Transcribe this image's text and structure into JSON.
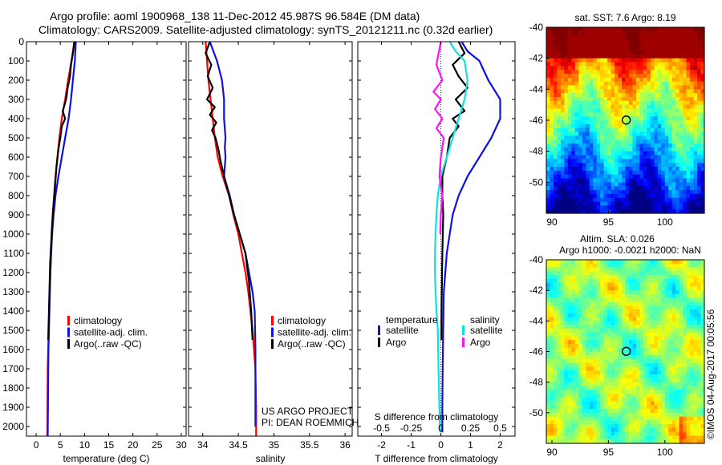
{
  "header": {
    "line1": "Argo profile: aoml 1900968_138 11-Dec-2012 45.987S 96.584E (DM data)",
    "line2": "Climatology: CARS2009. Satellite-adjusted climatology: synTS_20121211.nc (0.32d earlier)"
  },
  "colors": {
    "climatology": "#ff0000",
    "satellite": "#1010e0",
    "argo": "#000000",
    "satellite_s": "#10e0e0",
    "argo_s": "#ff10ff"
  },
  "chart_data": [
    {
      "id": "temperature",
      "type": "line",
      "xlabel": "temperature (deg C)",
      "ylabel": "",
      "xlim": [
        -2,
        31
      ],
      "ylim": [
        2050,
        0
      ],
      "xticks": [
        0,
        5,
        10,
        15,
        20,
        25,
        30
      ],
      "yticks": [
        0,
        100,
        200,
        300,
        400,
        500,
        600,
        700,
        800,
        900,
        1000,
        1100,
        1200,
        1300,
        1400,
        1500,
        1600,
        1700,
        1800,
        1900,
        2000
      ],
      "legend": [
        "climatology",
        "satellite-adj. clim.",
        "Argo(..raw -QC)"
      ],
      "series": [
        {
          "name": "climatology",
          "color": "#ff0000",
          "x": [
            7.9,
            7.3,
            6.6,
            6.0,
            5.3,
            4.8,
            4.4,
            4.0,
            3.7,
            3.4,
            3.2,
            3.0,
            2.9,
            2.8,
            2.7,
            2.6,
            2.5,
            2.4,
            2.35,
            2.3
          ],
          "y": [
            0,
            100,
            200,
            300,
            400,
            500,
            600,
            700,
            800,
            900,
            1000,
            1100,
            1200,
            1300,
            1400,
            1500,
            1600,
            1700,
            1900,
            2050
          ]
        },
        {
          "name": "satellite-adj. clim.",
          "color": "#1010e0",
          "x": [
            8.2,
            8.0,
            7.6,
            7.2,
            6.7,
            6.0,
            5.3,
            4.6,
            4.0,
            3.6,
            3.3,
            3.1,
            2.95,
            2.85,
            2.75,
            2.65,
            2.55,
            2.5,
            2.45,
            2.4
          ],
          "y": [
            0,
            100,
            200,
            300,
            400,
            500,
            600,
            700,
            800,
            900,
            1000,
            1100,
            1200,
            1300,
            1400,
            1500,
            1600,
            1700,
            1900,
            2050
          ]
        },
        {
          "name": "Argo(..raw -QC)",
          "color": "#000000",
          "x": [
            7.9,
            7.6,
            7.2,
            7.0,
            6.5,
            6.2,
            5.5,
            6.0,
            5.3,
            5.0,
            4.6,
            4.2,
            3.9,
            3.6,
            3.3,
            3.1,
            2.9,
            2.8,
            2.7,
            2.6,
            2.55,
            2.5
          ],
          "y": [
            0,
            60,
            120,
            180,
            240,
            300,
            360,
            400,
            440,
            500,
            560,
            650,
            750,
            850,
            950,
            1050,
            1150,
            1250,
            1350,
            1450,
            1500,
            1550
          ]
        }
      ]
    },
    {
      "id": "salinity",
      "type": "line",
      "xlabel": "salinity",
      "ylabel": "",
      "xlim": [
        33.8,
        36.1
      ],
      "ylim": [
        2050,
        0
      ],
      "xticks": [
        34,
        34.5,
        35,
        35.5,
        36
      ],
      "xtick_labels": [
        "34",
        "34.5",
        "35",
        "35.5",
        "36"
      ],
      "legend": [
        "climatology",
        "satellite-adj. clim.",
        "Argo(..raw -QC)"
      ],
      "series": [
        {
          "name": "climatology",
          "color": "#ff0000",
          "x": [
            34.04,
            34.06,
            34.08,
            34.11,
            34.14,
            34.17,
            34.21,
            34.28,
            34.37,
            34.43,
            34.5,
            34.55,
            34.6,
            34.64,
            34.67,
            34.7,
            34.72,
            34.74,
            34.75,
            34.75
          ],
          "y": [
            0,
            100,
            200,
            300,
            400,
            500,
            600,
            700,
            800,
            900,
            1000,
            1100,
            1200,
            1300,
            1400,
            1500,
            1600,
            1700,
            1900,
            2050
          ]
        },
        {
          "name": "satellite-adj. clim.",
          "color": "#1010e0",
          "x": [
            34.1,
            34.2,
            34.27,
            34.3,
            34.3,
            34.32,
            34.31,
            34.32,
            34.3,
            34.38,
            34.44,
            34.52,
            34.6,
            34.65,
            34.7,
            34.73,
            34.74,
            34.74,
            34.74,
            34.74
          ],
          "y": [
            0,
            100,
            200,
            300,
            400,
            500,
            550,
            600,
            700,
            800,
            900,
            1000,
            1100,
            1200,
            1300,
            1400,
            1600,
            1800,
            1900,
            2000
          ]
        },
        {
          "name": "Argo(..raw -QC)",
          "color": "#000000",
          "x": [
            34.1,
            34.04,
            34.12,
            34.07,
            34.14,
            34.06,
            34.17,
            34.1,
            34.19,
            34.13,
            34.18,
            34.22,
            34.25,
            34.3,
            34.37,
            34.44,
            34.52,
            34.6,
            34.65,
            34.68,
            34.7
          ],
          "y": [
            0,
            60,
            120,
            180,
            240,
            300,
            340,
            380,
            420,
            460,
            500,
            560,
            620,
            700,
            800,
            900,
            1000,
            1100,
            1250,
            1400,
            1550
          ]
        }
      ]
    },
    {
      "id": "difference",
      "type": "line",
      "xlabel": "T difference from climatology",
      "x2label": "S difference from climatology",
      "ylabel": "",
      "xlim": [
        -2.8,
        2.5
      ],
      "ylim": [
        2050,
        0
      ],
      "xticks": [
        -2,
        -1,
        0,
        1,
        2
      ],
      "x2ticks": [
        -0.5,
        -0.25,
        0,
        0.25,
        0.5
      ],
      "x2tick_labels": [
        "-0.5",
        "-0.25",
        "0",
        "0.25",
        "0.5"
      ],
      "legend_headers": [
        "temperature",
        "salinity"
      ],
      "legend": [
        "satellite",
        "Argo",
        "satellite",
        "Argo"
      ],
      "series": [
        {
          "name": "satellite",
          "quantity": "temperature",
          "color": "#1010e0",
          "x": [
            0.7,
            0.9,
            1.3,
            1.6,
            2.0,
            2.0,
            1.7,
            1.3,
            0.9,
            0.6,
            0.4,
            0.3,
            0.2,
            0.15,
            0.1,
            0.08,
            0.06,
            0.05,
            0.05
          ],
          "y": [
            0,
            50,
            100,
            200,
            300,
            400,
            500,
            600,
            700,
            800,
            900,
            1000,
            1100,
            1200,
            1300,
            1500,
            1700,
            1900,
            2030
          ]
        },
        {
          "name": "Argo",
          "quantity": "temperature",
          "color": "#000000",
          "x": [
            0.6,
            0.8,
            0.4,
            0.6,
            0.9,
            0.5,
            0.8,
            0.4,
            0.6,
            0.3,
            0.2,
            0.05,
            0.05,
            0.08,
            0.05,
            0.03,
            0.02,
            0.02
          ],
          "y": [
            0,
            60,
            120,
            180,
            240,
            300,
            360,
            400,
            440,
            500,
            600,
            700,
            800,
            900,
            1100,
            1300,
            1450,
            1550
          ]
        },
        {
          "name": "satellite",
          "quantity": "salinity",
          "color": "#10e0e0",
          "x": [
            0.3,
            0.5,
            0.8,
            0.9,
            0.8,
            0.6,
            0.4,
            0.2,
            0.0,
            -0.1,
            -0.15,
            -0.18,
            -0.2,
            -0.2,
            -0.18,
            -0.15,
            -0.1,
            -0.08,
            -0.05,
            -0.03
          ],
          "y": [
            0,
            50,
            100,
            200,
            300,
            400,
            500,
            600,
            700,
            800,
            900,
            1000,
            1100,
            1200,
            1300,
            1400,
            1500,
            1700,
            1900,
            2030
          ]
        },
        {
          "name": "Argo",
          "quantity": "salinity",
          "color": "#ff10ff",
          "x": [
            0.0,
            -0.15,
            0.05,
            -0.25,
            0.0,
            -0.2,
            0.05,
            -0.15,
            0.1,
            0.0,
            -0.05,
            0.05,
            0.0,
            -0.02
          ],
          "y": [
            0,
            120,
            200,
            260,
            300,
            350,
            400,
            450,
            500,
            600,
            700,
            800,
            900,
            1000
          ]
        }
      ]
    },
    {
      "id": "sst_map",
      "type": "heatmap",
      "title": "sat. SST: 7.6 Argo: 8.19",
      "xlim": [
        89.5,
        103.5
      ],
      "ylim": [
        -52,
        -40
      ],
      "xticks": [
        90,
        95,
        100
      ],
      "yticks": [
        -40,
        -42,
        -44,
        -46,
        -48,
        -50
      ],
      "marker": {
        "lon": 96.584,
        "lat": -45.987
      }
    },
    {
      "id": "sla_map",
      "type": "heatmap",
      "title": "Altim. SLA: 0.026",
      "subtitle": "Argo h1000: -0.0021 h2000: NaN",
      "xlim": [
        89.5,
        103.5
      ],
      "ylim": [
        -52,
        -40
      ],
      "xticks": [
        90,
        95,
        100
      ],
      "yticks": [
        -40,
        -42,
        -44,
        -46,
        -48,
        -50
      ],
      "marker": {
        "lon": 96.584,
        "lat": -45.987
      }
    }
  ],
  "annotations": {
    "project": "US ARGO PROJECT",
    "pi": "PI: DEAN ROEMMICH",
    "imos": "©IMOS 04-Aug-2017 00:05:56"
  }
}
